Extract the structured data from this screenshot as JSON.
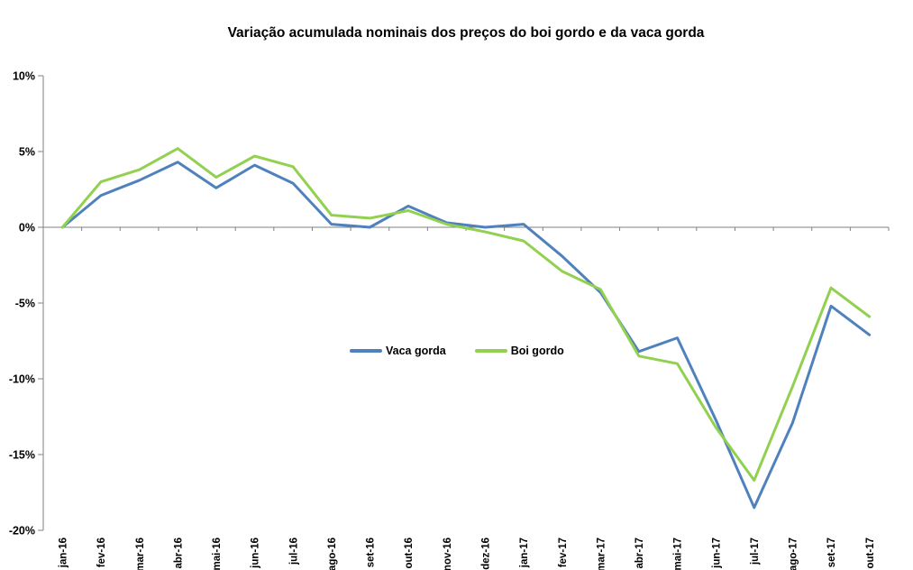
{
  "title": "Variação acumulada nominais dos preços do boi gordo e da vaca gorda",
  "colors": {
    "background": "#FFFFFF",
    "axis": "#808080",
    "text": "#000000",
    "vaca_gorda": "#4F81BD",
    "boi_gordo": "#92D050"
  },
  "legend": {
    "items": [
      {
        "label": "Vaca gorda",
        "color": "#4F81BD"
      },
      {
        "label": "Boi gordo",
        "color": "#92D050"
      }
    ]
  },
  "chart_data": {
    "type": "line",
    "title": "Variação acumulada nominais dos preços do boi gordo e da vaca gorda",
    "xlabel": "",
    "ylabel": "",
    "ylim": [
      -20,
      10
    ],
    "ytick_step": 5,
    "grid": "only-zero-line",
    "legend_position": "inside-plot-center",
    "y_ticks": [
      {
        "value": 10,
        "label": "10%"
      },
      {
        "value": 5,
        "label": "5%"
      },
      {
        "value": 0,
        "label": "0%"
      },
      {
        "value": -5,
        "label": "-5%"
      },
      {
        "value": -10,
        "label": "-10%"
      },
      {
        "value": -15,
        "label": "-15%"
      },
      {
        "value": -20,
        "label": "-20%"
      }
    ],
    "categories": [
      "jan-16",
      "fev-16",
      "mar-16",
      "abr-16",
      "mai-16",
      "jun-16",
      "jul-16",
      "ago-16",
      "set-16",
      "out-16",
      "nov-16",
      "dez-16",
      "jan-17",
      "fev-17",
      "mar-17",
      "abr-17",
      "mai-17",
      "jun-17",
      "jul-17",
      "ago-17",
      "set-17",
      "out-17"
    ],
    "series": [
      {
        "name": "Vaca gorda",
        "color": "#4F81BD",
        "values": [
          0.0,
          2.1,
          3.1,
          4.3,
          2.6,
          4.1,
          2.9,
          0.2,
          0.0,
          1.4,
          0.3,
          0.0,
          0.2,
          -1.9,
          -4.3,
          -8.2,
          -7.3,
          -12.7,
          -18.5,
          -12.9,
          -5.2,
          -7.1
        ]
      },
      {
        "name": "Boi gordo",
        "color": "#92D050",
        "values": [
          0.0,
          3.0,
          3.8,
          5.2,
          3.3,
          4.7,
          4.0,
          0.8,
          0.6,
          1.1,
          0.2,
          -0.3,
          -0.9,
          -2.9,
          -4.1,
          -8.5,
          -9.0,
          -13.2,
          -16.7,
          -10.5,
          -4.0,
          -5.9
        ]
      }
    ]
  }
}
